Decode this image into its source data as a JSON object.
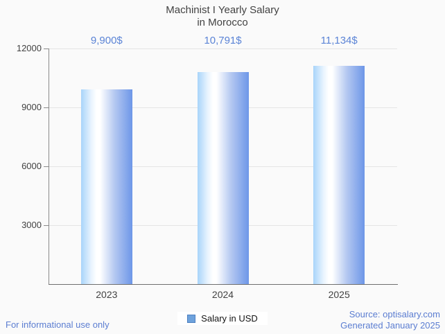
{
  "title": {
    "line1": "Machinist I Yearly Salary",
    "line2": "in Morocco"
  },
  "chart_data": {
    "type": "bar",
    "categories": [
      "2023",
      "2024",
      "2025"
    ],
    "values": [
      9900,
      10791,
      11134
    ],
    "value_labels": [
      "9,900$",
      "10,791$",
      "11,134$"
    ],
    "series": [
      {
        "name": "Salary in USD",
        "values": [
          9900,
          10791,
          11134
        ]
      }
    ],
    "title": "Machinist I Yearly Salary in Morocco",
    "xlabel": "",
    "ylabel": "",
    "ylim": [
      0,
      12000
    ],
    "ytick_values": [
      3000,
      6000,
      9000,
      12000
    ],
    "ytick_labels": [
      "3000",
      "6000",
      "9000",
      "12000"
    ],
    "grid": true,
    "legend_position": "bottom"
  },
  "legend": {
    "label": "Salary in USD",
    "swatch_color": "#6ea2dc"
  },
  "footer": {
    "disclaimer": "For informational use only",
    "source": "Source: optisalary.com",
    "generated": "Generated January 2025"
  },
  "colors": {
    "background": "#fafafa",
    "value_label_blue": "#5b84d6",
    "footer_blue": "#5b7dd1",
    "bar_gradient": [
      "#a8d4fa",
      "#ffffff",
      "#6d96e8"
    ],
    "gridline": "#e4e4e4",
    "axis": "#6e6e6e",
    "text": "#424242"
  }
}
